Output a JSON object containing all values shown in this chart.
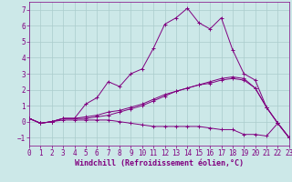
{
  "xlabel": "Windchill (Refroidissement éolien,°C)",
  "bg_color": "#cce8e8",
  "line_color": "#800080",
  "grid_color": "#aacccc",
  "x_values": [
    0,
    1,
    2,
    3,
    4,
    5,
    6,
    7,
    8,
    9,
    10,
    11,
    12,
    13,
    14,
    15,
    16,
    17,
    18,
    19,
    20,
    21,
    22,
    23
  ],
  "series": [
    [
      0.2,
      -0.1,
      0.0,
      0.2,
      0.2,
      1.1,
      1.5,
      2.5,
      2.2,
      3.0,
      3.3,
      4.6,
      6.1,
      6.5,
      7.1,
      6.2,
      5.8,
      6.5,
      4.5,
      3.0,
      2.6,
      0.9,
      -0.1,
      -1.0
    ],
    [
      0.2,
      -0.1,
      0.0,
      0.1,
      0.1,
      0.1,
      0.1,
      0.1,
      0.0,
      -0.1,
      -0.2,
      -0.3,
      -0.3,
      -0.3,
      -0.3,
      -0.3,
      -0.4,
      -0.5,
      -0.5,
      -0.8,
      -0.8,
      -0.9,
      -0.1,
      -1.0
    ],
    [
      0.2,
      -0.1,
      0.0,
      0.2,
      0.2,
      0.3,
      0.4,
      0.6,
      0.7,
      0.9,
      1.1,
      1.4,
      1.7,
      1.9,
      2.1,
      2.3,
      2.4,
      2.6,
      2.7,
      2.6,
      2.1,
      0.9,
      -0.1,
      -1.0
    ],
    [
      0.2,
      -0.1,
      0.0,
      0.2,
      0.2,
      0.2,
      0.3,
      0.4,
      0.6,
      0.8,
      1.0,
      1.3,
      1.6,
      1.9,
      2.1,
      2.3,
      2.5,
      2.7,
      2.8,
      2.7,
      2.1,
      0.9,
      -0.1,
      -1.0
    ]
  ],
  "xlim": [
    0,
    23
  ],
  "ylim": [
    -1.5,
    7.5
  ],
  "yticks": [
    -1,
    0,
    1,
    2,
    3,
    4,
    5,
    6,
    7
  ],
  "xticks": [
    0,
    1,
    2,
    3,
    4,
    5,
    6,
    7,
    8,
    9,
    10,
    11,
    12,
    13,
    14,
    15,
    16,
    17,
    18,
    19,
    20,
    21,
    22,
    23
  ],
  "tick_fontsize": 5.5,
  "label_fontsize": 6.0,
  "marker": "+"
}
